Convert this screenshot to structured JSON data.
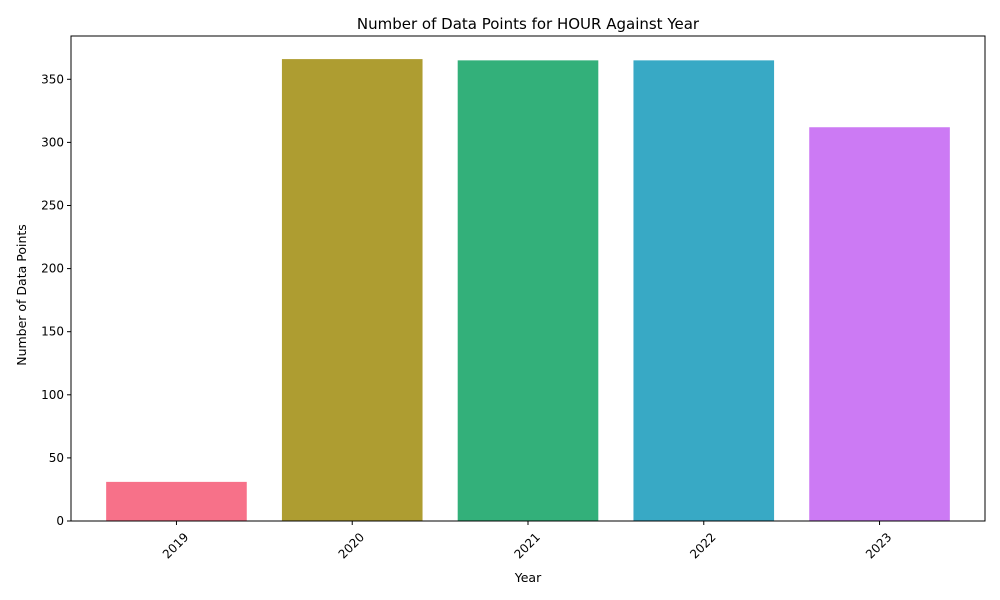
{
  "chart_data": {
    "type": "bar",
    "title": "Number of Data Points for HOUR Against Year",
    "xlabel": "Year",
    "ylabel": "Number of Data Points",
    "categories": [
      "2019",
      "2020",
      "2021",
      "2022",
      "2023"
    ],
    "values": [
      31,
      366,
      365,
      365,
      312
    ],
    "colors": [
      "#f77189",
      "#ae9d31",
      "#33b07a",
      "#38a9c5",
      "#cc7af4"
    ],
    "ylim": [
      0,
      384.3
    ],
    "yticks": [
      0,
      50,
      100,
      150,
      200,
      250,
      300,
      350
    ],
    "xtick_rotation": 45,
    "grid": false,
    "legend": "none"
  }
}
